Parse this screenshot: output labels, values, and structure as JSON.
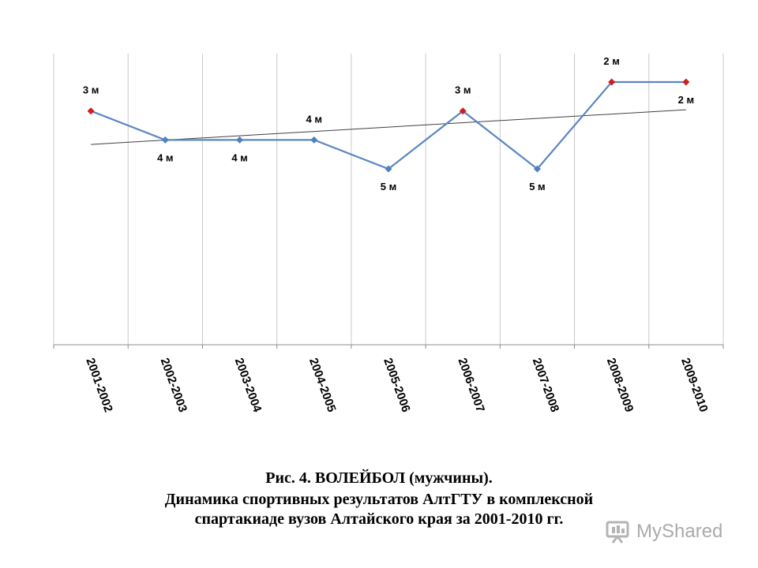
{
  "chart_data": {
    "type": "line",
    "categories": [
      "2001-2002",
      "2002-2003",
      "2003-2004",
      "2004-2005",
      "2005-2006",
      "2006-2007",
      "2007-2008",
      "2008-2009",
      "2009-2010"
    ],
    "series": [
      {
        "values": [
          3,
          4,
          4,
          4,
          5,
          3,
          5,
          2,
          2
        ],
        "labels": [
          "3 м",
          "4 м",
          "4 м",
          "4 м",
          "5 м",
          "3 м",
          "5 м",
          "2 м",
          "2 м"
        ],
        "color": "#5b86c0",
        "marker_colors": [
          "#cc1f1f",
          "#4f81bd",
          "#4f81bd",
          "#4f81bd",
          "#4f81bd",
          "#cc1f1f",
          "#4f81bd",
          "#cc1f1f",
          "#cc1f1f"
        ]
      }
    ],
    "trendline": {
      "type": "linear",
      "color": "#404040"
    },
    "ylim": [
      9,
      1
    ],
    "y_axis_reversed": true,
    "grid": "vertical",
    "xlabel": "",
    "ylabel": ""
  },
  "caption": {
    "line1": "Рис. 4. ВОЛЕЙБОЛ (мужчины).",
    "line2": "Динамика спортивных результатов АлтГТУ в комплексной",
    "line3": "спартакиаде вузов Алтайского края за 2001-2010 гг."
  },
  "watermark": {
    "text": "MyShared",
    "icon": "presentation-icon"
  }
}
